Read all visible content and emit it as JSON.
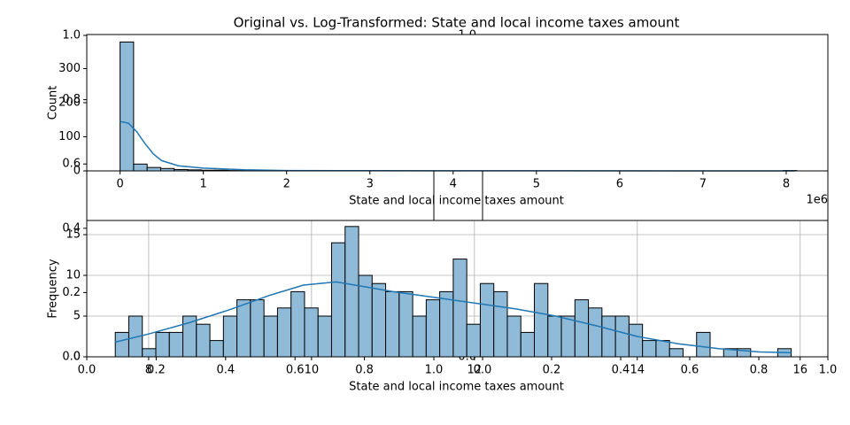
{
  "chart_data": [
    {
      "type": "histogram",
      "title": "Original vs. Log-Transformed: State and local income taxes amount",
      "x_label": "State and local income taxes amount",
      "y_label": "Count",
      "x_offset_label": "1e6",
      "bins": [
        0,
        0.1625,
        0.325,
        0.4875,
        0.65,
        0.8125,
        0.975,
        1.1375,
        1.3,
        1.4625,
        1.625,
        1.7875,
        1.95,
        2.1125,
        2.275,
        2.4375,
        2.6,
        2.7625,
        2.925,
        3.0875,
        3.25,
        3.4125,
        3.575,
        3.7375,
        3.9,
        4.0625,
        4.225,
        4.3875,
        4.55,
        4.7125,
        4.875,
        5.0375,
        5.2,
        5.3625,
        5.525,
        5.6875,
        5.85,
        6.0125,
        6.175,
        6.3375,
        6.5,
        6.6625,
        6.825,
        6.9875,
        7.15,
        7.3125,
        7.475,
        7.6375,
        7.8,
        7.9625,
        8.125
      ],
      "values": [
        378,
        20,
        10,
        7,
        4,
        3,
        2,
        2,
        1,
        1,
        1,
        1,
        0,
        1,
        0,
        0,
        1,
        0,
        0,
        0,
        0,
        0,
        0,
        0,
        0,
        0,
        0,
        0,
        0,
        0,
        0,
        0,
        0,
        0,
        0,
        0,
        0,
        0,
        0,
        0,
        0,
        0,
        0,
        0,
        0,
        0,
        0,
        0,
        0,
        1
      ],
      "color": "#8fbbd9",
      "edge_color": "#000000",
      "kde": {
        "color": "#1f77b4",
        "x": [
          0,
          0.1,
          0.2,
          0.3,
          0.4,
          0.5,
          0.7,
          1,
          1.5,
          2,
          3,
          5,
          8.1
        ],
        "values": [
          145,
          140,
          115,
          80,
          50,
          30,
          15,
          8,
          3,
          1,
          0.5,
          0.2,
          0
        ]
      },
      "xlim": [
        -0.4,
        8.5
      ],
      "ylim": [
        0,
        400
      ],
      "xticks": [
        0,
        1,
        2,
        3,
        4,
        5,
        6,
        7,
        8
      ],
      "yticks": [
        0,
        100,
        200,
        300
      ],
      "grid": false
    },
    {
      "type": "histogram",
      "x_label": "State and local income taxes amount",
      "y_label": "Frequency",
      "bins": [
        7.59,
        7.756,
        7.922,
        8.088,
        8.254,
        8.42,
        8.586,
        8.752,
        8.918,
        9.084,
        9.25,
        9.416,
        9.582,
        9.748,
        9.914,
        10.08,
        10.246,
        10.412,
        10.578,
        10.744,
        10.91,
        11.076,
        11.242,
        11.408,
        11.574,
        11.74,
        11.906,
        12.072,
        12.238,
        12.404,
        12.57,
        12.736,
        12.902,
        13.068,
        13.234,
        13.4,
        13.566,
        13.732,
        13.898,
        14.064,
        14.23,
        14.396,
        14.562,
        14.728,
        14.894,
        15.06,
        15.226,
        15.392,
        15.558,
        15.724,
        15.89
      ],
      "values": [
        3,
        5,
        1,
        3,
        3,
        5,
        4,
        2,
        5,
        7,
        7,
        5,
        6,
        8,
        6,
        5,
        14,
        16,
        10,
        9,
        8,
        8,
        5,
        7,
        8,
        12,
        4,
        9,
        8,
        5,
        3,
        9,
        5,
        5,
        7,
        6,
        5,
        5,
        4,
        2,
        2,
        1,
        0,
        3,
        0,
        1,
        1,
        0,
        0,
        1
      ],
      "color": "#8fbbd9",
      "edge_color": "#000000",
      "kde": {
        "color": "#1f77b4",
        "x": [
          7.59,
          8,
          8.5,
          9,
          9.5,
          9.9,
          10.3,
          10.6,
          11,
          11.5,
          12,
          12.5,
          13,
          13.5,
          14,
          14.5,
          15,
          15.5,
          15.89
        ],
        "values": [
          1.8,
          2.8,
          4.2,
          5.8,
          7.6,
          8.8,
          9.2,
          8.7,
          8,
          7.3,
          6.6,
          5.9,
          5,
          3.8,
          2.5,
          1.6,
          1,
          0.6,
          0.5
        ]
      },
      "xlim": [
        7.24,
        16.34
      ],
      "ylim": [
        0,
        16.74
      ],
      "xticks": [
        8,
        10,
        12,
        14,
        16
      ],
      "yticks": [
        0,
        5,
        10,
        15
      ],
      "grid": true
    },
    {
      "type": "blank",
      "xlim": [
        0,
        1
      ],
      "ylim": [
        0,
        1
      ],
      "xticks": [
        {
          "value": 0,
          "label": "0.0"
        },
        {
          "value": 0.2,
          "label": "0.2"
        },
        {
          "value": 0.4,
          "label": "0.4"
        },
        {
          "value": 0.6,
          "label": "0.6"
        },
        {
          "value": 0.8,
          "label": "0.8"
        },
        {
          "value": 1,
          "label": "1.0"
        }
      ],
      "yticks": [
        {
          "value": 0,
          "label": "0.0"
        },
        {
          "value": 0.2,
          "label": "0.2"
        },
        {
          "value": 0.4,
          "label": "0.4"
        },
        {
          "value": 0.6,
          "label": "0.6"
        },
        {
          "value": 0.8,
          "label": "0.8"
        },
        {
          "value": 1,
          "label": "1.0"
        }
      ]
    },
    {
      "type": "blank",
      "xlim": [
        0,
        1
      ],
      "ylim": [
        0,
        1
      ],
      "xticks": [
        {
          "value": 0,
          "label": "0.0"
        },
        {
          "value": 0.2,
          "label": "0.2"
        },
        {
          "value": 0.4,
          "label": "0.4"
        },
        {
          "value": 0.6,
          "label": "0.6"
        },
        {
          "value": 0.8,
          "label": "0.8"
        },
        {
          "value": 1,
          "label": "1.0"
        }
      ],
      "yticks": [
        {
          "value": 0,
          "label": "0.0"
        },
        {
          "value": 1,
          "label": "1.0"
        }
      ]
    }
  ]
}
